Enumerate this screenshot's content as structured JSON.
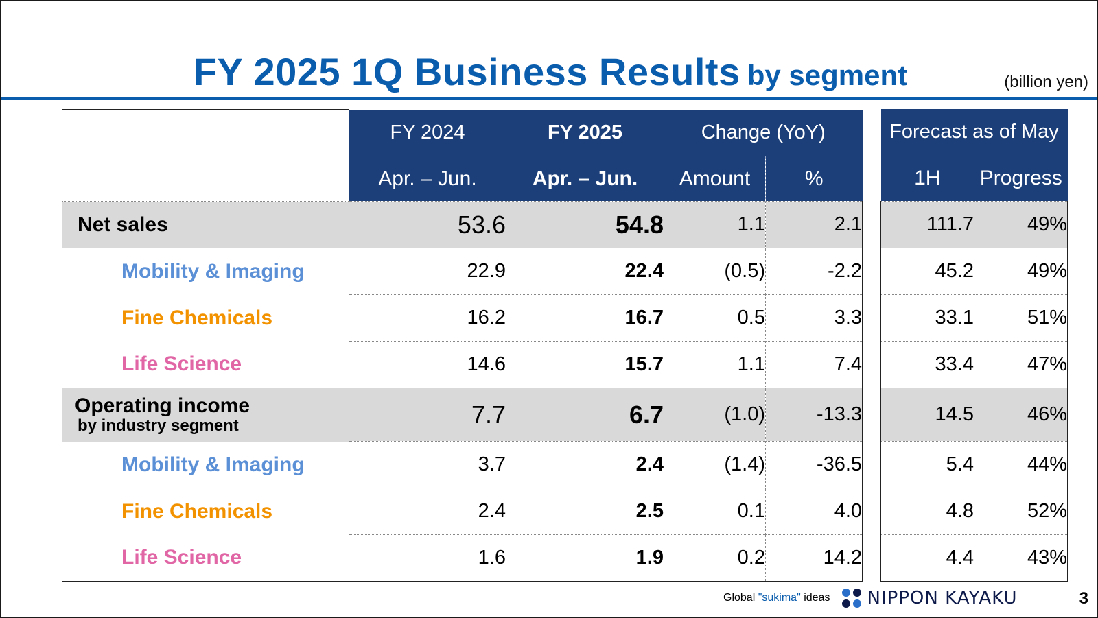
{
  "title": {
    "main": "FY 2025 1Q Business Results",
    "sub": "by segment"
  },
  "unit": "(billion yen)",
  "colors": {
    "title": "#0a5cad",
    "header_bg": "#1c3f7a",
    "total_row_bg": "#d9d9d9",
    "mobility": "#5b8fd6",
    "fine_chemicals": "#f39200",
    "life_science": "#e066a6"
  },
  "header": {
    "fy2024": "FY 2024",
    "fy2025": "FY 2025",
    "change": "Change (YoY)",
    "period_2024": "Apr. – Jun.",
    "period_2025": "Apr. – Jun.",
    "amount": "Amount",
    "pct": "%",
    "forecast": "Forecast as of May",
    "h1": "1H",
    "progress": "Progress"
  },
  "rows": [
    {
      "label": "Net sales",
      "fy2024": "53.6",
      "fy2025": "54.8",
      "amount": "1.1",
      "pct": "2.1",
      "h1": "111.7",
      "progress": "49%"
    },
    {
      "label": "Mobility & Imaging",
      "fy2024": "22.9",
      "fy2025": "22.4",
      "amount": "(0.5)",
      "pct": "-2.2",
      "h1": "45.2",
      "progress": "49%"
    },
    {
      "label": "Fine Chemicals",
      "fy2024": "16.2",
      "fy2025": "16.7",
      "amount": "0.5",
      "pct": "3.3",
      "h1": "33.1",
      "progress": "51%"
    },
    {
      "label": "Life Science",
      "fy2024": "14.6",
      "fy2025": "15.7",
      "amount": "1.1",
      "pct": "7.4",
      "h1": "33.4",
      "progress": "47%"
    },
    {
      "label": "Operating income",
      "label2": "by industry segment",
      "fy2024": "7.7",
      "fy2025": "6.7",
      "amount": "(1.0)",
      "pct": "-13.3",
      "h1": "14.5",
      "progress": "46%"
    },
    {
      "label": "Mobility & Imaging",
      "fy2024": "3.7",
      "fy2025": "2.4",
      "amount": "(1.4)",
      "pct": "-36.5",
      "h1": "5.4",
      "progress": "44%"
    },
    {
      "label": "Fine Chemicals",
      "fy2024": "2.4",
      "fy2025": "2.5",
      "amount": "0.1",
      "pct": "4.0",
      "h1": "4.8",
      "progress": "52%"
    },
    {
      "label": "Life Science",
      "fy2024": "1.6",
      "fy2025": "1.9",
      "amount": "0.2",
      "pct": "14.2",
      "h1": "4.4",
      "progress": "43%"
    }
  ],
  "footer": {
    "tagline_pre": "Global ",
    "tagline_quote": "\"sukima\"",
    "tagline_post": " ideas",
    "logo_icon": "nippon-kayaku-logo-icon",
    "company": "NIPPON KAYAKU"
  },
  "page_number": "3"
}
